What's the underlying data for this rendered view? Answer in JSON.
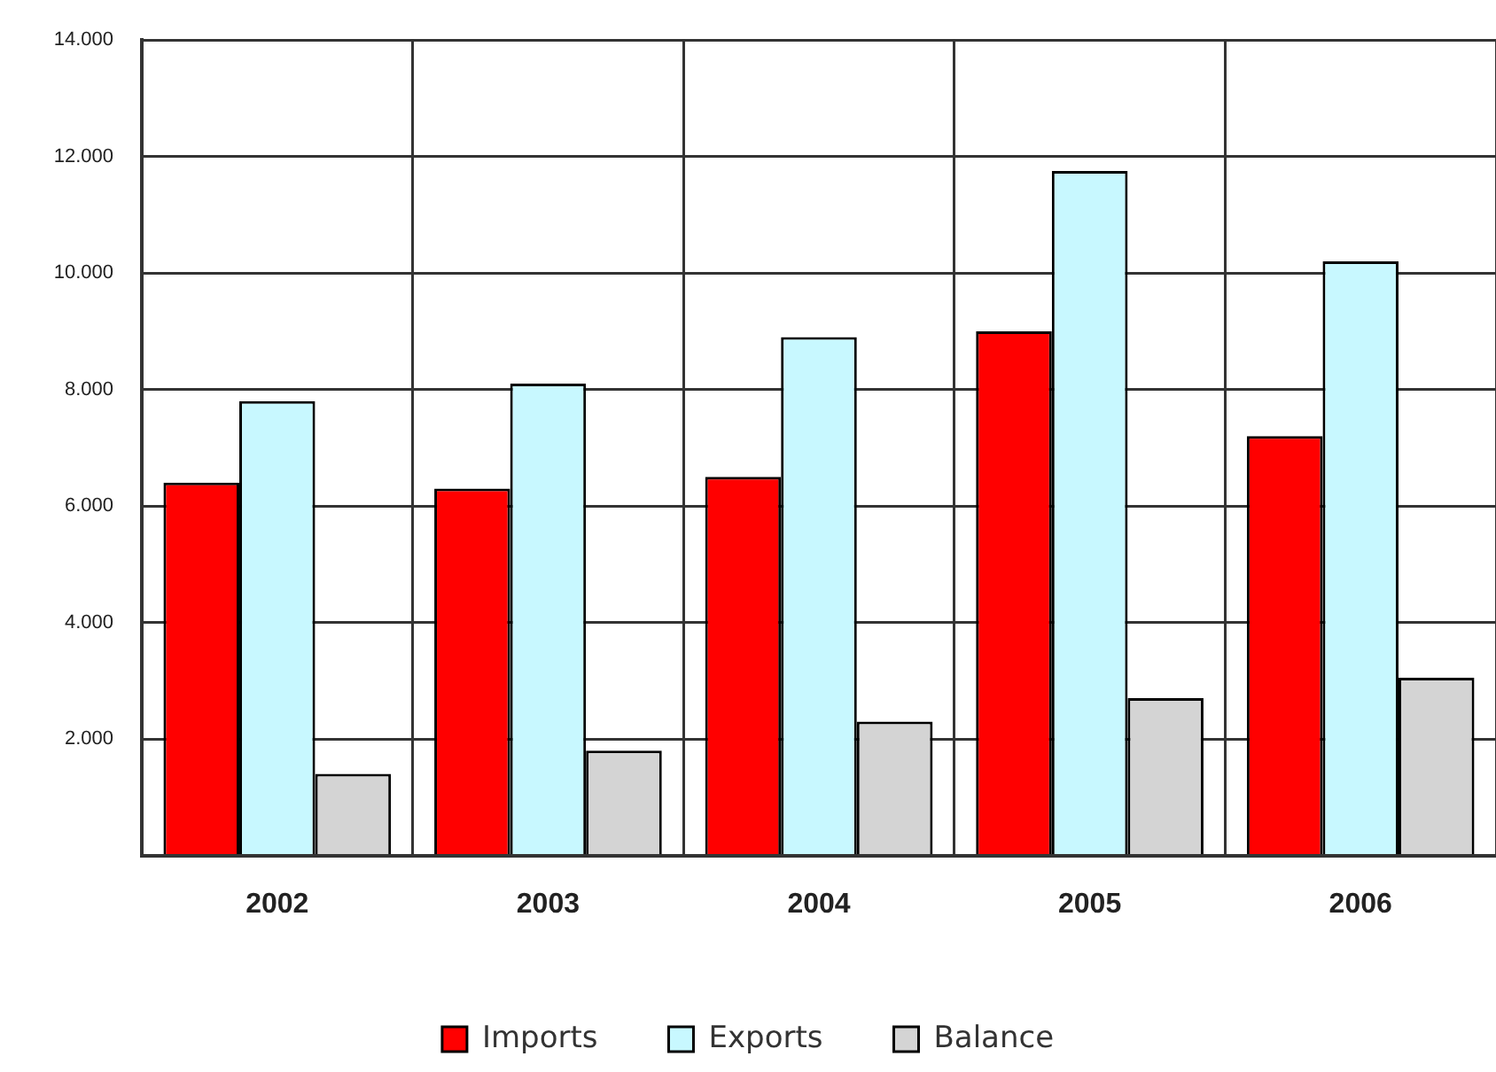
{
  "chart_data": {
    "type": "bar",
    "categories": [
      "2002",
      "2003",
      "2004",
      "2005",
      "2006"
    ],
    "series": [
      {
        "name": "Imports",
        "color": "#ff0000",
        "values": [
          6400,
          6300,
          6500,
          9000,
          7200
        ]
      },
      {
        "name": "Exports",
        "color": "#c8f8ff",
        "values": [
          7800,
          8100,
          8900,
          11750,
          10200
        ]
      },
      {
        "name": "Balance",
        "color": "#d4d4d4",
        "values": [
          1400,
          1800,
          2300,
          2700,
          3050
        ]
      }
    ],
    "ylim": [
      0,
      14000
    ],
    "yticks": [
      {
        "value": 0,
        "label": null
      },
      {
        "value": 2000,
        "label": "2.000"
      },
      {
        "value": 4000,
        "label": "4.000"
      },
      {
        "value": 6000,
        "label": "6.000"
      },
      {
        "value": 8000,
        "label": "8.000"
      },
      {
        "value": 10000,
        "label": "10.000"
      },
      {
        "value": 12000,
        "label": "12.000"
      },
      {
        "value": 14000,
        "label": "14.000"
      }
    ],
    "grid": true,
    "legend": "bottom"
  }
}
